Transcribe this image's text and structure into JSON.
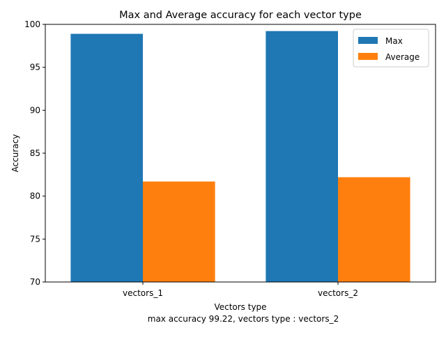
{
  "chart_data": {
    "type": "bar",
    "title": "Max and Average accuracy for each vector type",
    "xlabel": "Vectors type",
    "ylabel": "Accuracy",
    "caption": "max accuracy 99.22, vectors type : vectors_2",
    "categories": [
      "vectors_1",
      "vectors_2"
    ],
    "series": [
      {
        "name": "Max",
        "values": [
          98.9,
          99.22
        ],
        "color": "#1f77b4"
      },
      {
        "name": "Average",
        "values": [
          81.7,
          82.2
        ],
        "color": "#ff7f0e"
      }
    ],
    "ylim": [
      70,
      100
    ],
    "yticks": [
      70,
      75,
      80,
      85,
      90,
      95,
      100
    ],
    "grid": false,
    "legend": "top-right"
  }
}
